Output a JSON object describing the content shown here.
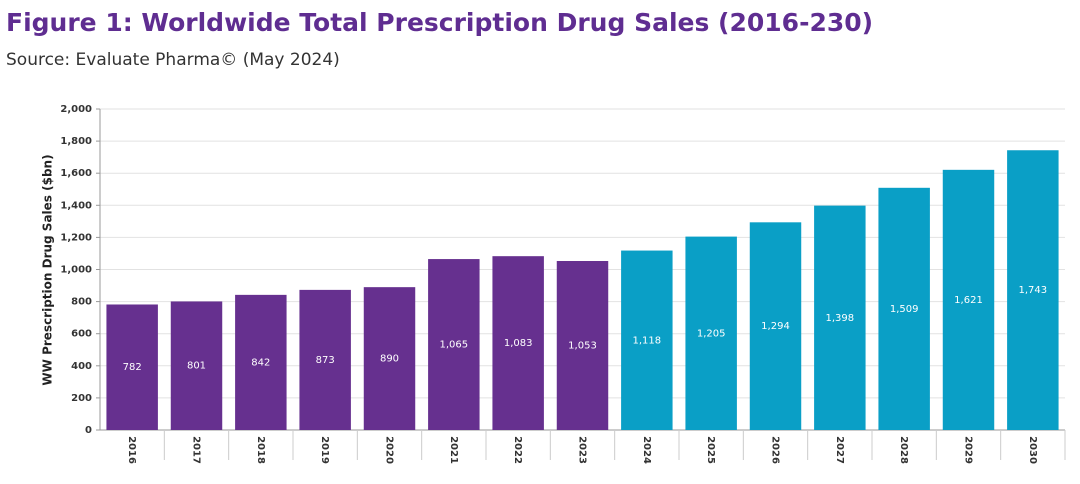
{
  "chart_data": {
    "type": "bar",
    "title": "Figure 1: Worldwide Total Prescription Drug Sales (2016-230)",
    "subtitle": "Source: Evaluate Pharma© (May 2024)",
    "y_label": "WW Prescription Drug Sales ($bn)",
    "categories": [
      "2016",
      "2017",
      "2018",
      "2019",
      "2020",
      "2021",
      "2022",
      "2023",
      "2024",
      "2025",
      "2026",
      "2027",
      "2028",
      "2029",
      "2030"
    ],
    "values": [
      782,
      801,
      842,
      873,
      890,
      1065,
      1083,
      1053,
      1118,
      1205,
      1294,
      1398,
      1509,
      1621,
      1743
    ],
    "value_labels": [
      "782",
      "801",
      "842",
      "873",
      "890",
      "1,065",
      "1,083",
      "1,053",
      "1,118",
      "1,205",
      "1,294",
      "1,398",
      "1,509",
      "1,621",
      "1,743"
    ],
    "colors": [
      "#66308f",
      "#66308f",
      "#66308f",
      "#66308f",
      "#66308f",
      "#66308f",
      "#66308f",
      "#66308f",
      "#0a9fc6",
      "#0a9fc6",
      "#0a9fc6",
      "#0a9fc6",
      "#0a9fc6",
      "#0a9fc6",
      "#0a9fc6"
    ],
    "ylim": [
      0,
      2000
    ],
    "yticks": [
      0,
      200,
      400,
      600,
      800,
      {
        "value": 1000,
        "label": "1,000"
      },
      {
        "value": 1200,
        "label": "1,200"
      },
      {
        "value": 1400,
        "label": "1,400"
      },
      {
        "value": 1600,
        "label": "1,600"
      },
      {
        "value": 1800,
        "label": "1,800"
      },
      {
        "value": 2000,
        "label": "2,000"
      }
    ],
    "grid": true
  }
}
